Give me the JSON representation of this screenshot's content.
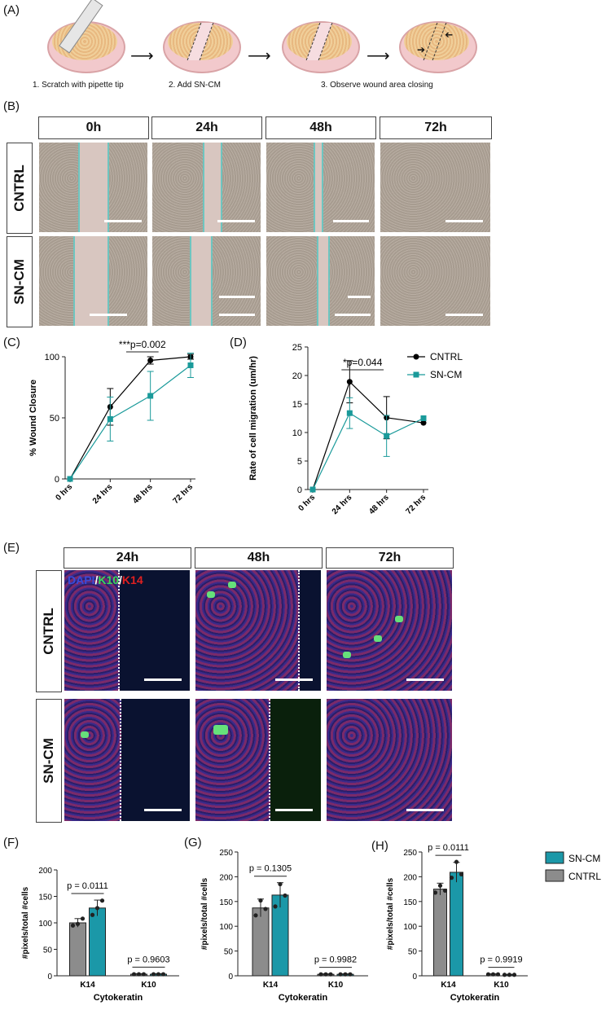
{
  "panel_labels": {
    "A": "(A)",
    "B": "(B)",
    "C": "(C)",
    "D": "(D)",
    "E": "(E)",
    "F": "(F)",
    "G": "(G)",
    "H": "(H)"
  },
  "workflow_steps": [
    "1. Scratch with pipette tip",
    "2. Add SN-CM",
    "3. Observe wound area closing"
  ],
  "panel_b": {
    "columns": [
      "0h",
      "24h",
      "48h",
      "72h"
    ],
    "rows": [
      "CNTRL",
      "SN-CM"
    ]
  },
  "panel_e": {
    "columns": [
      "24h",
      "48h",
      "72h"
    ],
    "rows": [
      "CNTRL",
      "SN-CM"
    ],
    "stain_dapi": "DAPI",
    "stain_sep1": "/",
    "stain_k10": "K10",
    "stain_sep2": "/",
    "stain_k14": "K14"
  },
  "colors": {
    "cntrl_line": "#000000",
    "sncm_line": "#1a9a9a",
    "bar_grey": "#8c8c8c",
    "bar_teal": "#1b98a8"
  },
  "chart_data": [
    {
      "panel": "C",
      "type": "line",
      "ylabel": "% Wound Closure",
      "xlabel": "",
      "categories": [
        "0 hrs",
        "24 hrs",
        "48 hrs",
        "72 hrs"
      ],
      "ylim": [
        0,
        100
      ],
      "yticks": [
        "0",
        "50",
        "100"
      ],
      "series": [
        {
          "name": "CNTRL",
          "values": [
            0,
            59,
            97,
            100
          ],
          "err": [
            0,
            15,
            3,
            2
          ]
        },
        {
          "name": "SN-CM",
          "values": [
            0,
            49,
            68,
            93
          ],
          "err": [
            0,
            18,
            20,
            10
          ]
        }
      ],
      "annotation": "***p=0.002"
    },
    {
      "panel": "D",
      "type": "line",
      "ylabel": "Rate of cell migration (um/hr)",
      "xlabel": "",
      "categories": [
        "0 hrs",
        "24 hrs",
        "48 hrs",
        "72 hrs"
      ],
      "ylim": [
        0,
        25
      ],
      "yticks": [
        "0",
        "5",
        "10",
        "15",
        "20",
        "25"
      ],
      "series": [
        {
          "name": "CNTRL",
          "values": [
            0,
            18.9,
            12.6,
            11.7
          ],
          "err": [
            0,
            3.7,
            3.7,
            0
          ]
        },
        {
          "name": "SN-CM",
          "values": [
            0,
            13.4,
            9.4,
            12.5
          ],
          "err": [
            0,
            2.7,
            3.6,
            0
          ]
        }
      ],
      "annotation": "*p=0.044",
      "legend": [
        "CNTRL",
        "SN-CM"
      ],
      "legend_position": "top-right"
    },
    {
      "panel": "F",
      "type": "bar",
      "ylabel": "#pixels/total #cells",
      "xlabel": "Cytokeratin",
      "categories": [
        "K14",
        "K10"
      ],
      "ylim": [
        0,
        200
      ],
      "yticks": [
        "0",
        "50",
        "100",
        "150",
        "200"
      ],
      "series": [
        {
          "name": "CNTRL",
          "values": [
            100,
            3
          ],
          "err": [
            8,
            1
          ],
          "points": [
            [
              95,
              98,
              108
            ],
            [
              3,
              3,
              3
            ]
          ]
        },
        {
          "name": "SN-CM",
          "values": [
            128,
            3
          ],
          "err": [
            15,
            1
          ],
          "points": [
            [
              115,
              128,
              142
            ],
            [
              3,
              3,
              3
            ]
          ]
        }
      ],
      "pvalues": [
        "p = 0.0111",
        "p = 0.9603"
      ]
    },
    {
      "panel": "G",
      "type": "bar",
      "ylabel": "#pixels/total #cells",
      "xlabel": "Cytokeratin",
      "categories": [
        "K14",
        "K10"
      ],
      "ylim": [
        0,
        250
      ],
      "yticks": [
        "0",
        "50",
        "100",
        "150",
        "200",
        "250"
      ],
      "series": [
        {
          "name": "CNTRL",
          "values": [
            137,
            3
          ],
          "err": [
            18,
            1
          ],
          "points": [
            [
              122,
              152,
              135
            ],
            [
              3,
              3,
              3
            ]
          ]
        },
        {
          "name": "SN-CM",
          "values": [
            163,
            3
          ],
          "err": [
            25,
            1
          ],
          "points": [
            [
              140,
              185,
              162
            ],
            [
              3,
              3,
              3
            ]
          ]
        }
      ],
      "pvalues": [
        "p = 0.1305",
        "p = 0.9982"
      ]
    },
    {
      "panel": "H",
      "type": "bar",
      "ylabel": "#pixels/total #cells",
      "xlabel": "Cytokeratin",
      "categories": [
        "K14",
        "K10"
      ],
      "ylim": [
        0,
        250
      ],
      "yticks": [
        "0",
        "50",
        "100",
        "150",
        "200",
        "250"
      ],
      "series": [
        {
          "name": "CNTRL",
          "values": [
            175,
            3
          ],
          "err": [
            12,
            1
          ],
          "points": [
            [
              168,
              182,
              172
            ],
            [
              3,
              3,
              3
            ]
          ]
        },
        {
          "name": "SN-CM",
          "values": [
            209,
            2
          ],
          "err": [
            20,
            1
          ],
          "points": [
            [
              198,
              230,
              205
            ],
            [
              2,
              2,
              2
            ]
          ]
        }
      ],
      "pvalues": [
        "p = 0.0111",
        "p = 0.9919"
      ],
      "legend": [
        "SN-CM",
        "CNTRL"
      ],
      "legend_position": "right"
    }
  ]
}
